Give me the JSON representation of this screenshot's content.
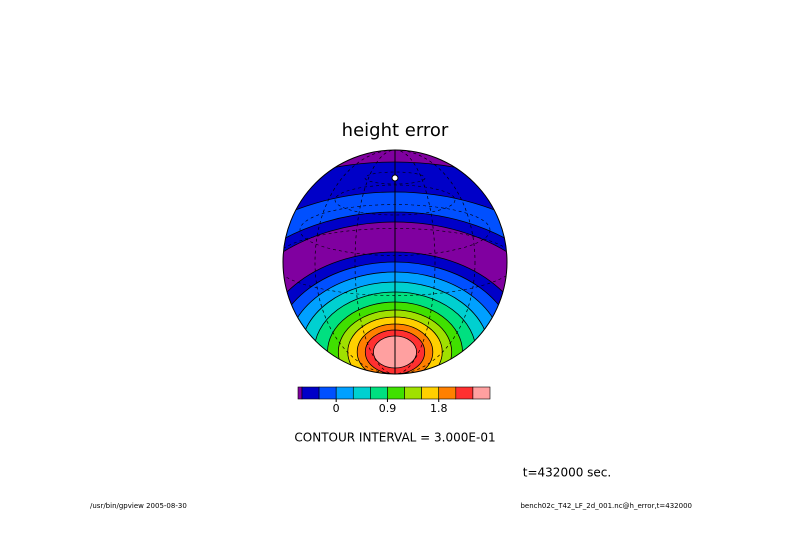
{
  "chart_data": {
    "type": "contour",
    "title": "height error",
    "colorbar": {
      "colors": [
        "#8000a0",
        "#0000c8",
        "#0050ff",
        "#00a0ff",
        "#00d0d0",
        "#00e080",
        "#40e000",
        "#a0e000",
        "#ffd000",
        "#ff8000",
        "#ff3030",
        "#ffa0a0"
      ],
      "clim": [
        -0.6,
        2.7
      ],
      "ticks": [
        0,
        0.9,
        1.8
      ]
    },
    "contour_interval": "CONTOUR INTERVAL = 3.000E-01",
    "time": "t=432000 sec.",
    "footer": {
      "left": "/usr/bin/gpview  2005-08-30",
      "right": "bench02c_T42_LF_2d_001.nc@h_error,t=432000"
    }
  }
}
